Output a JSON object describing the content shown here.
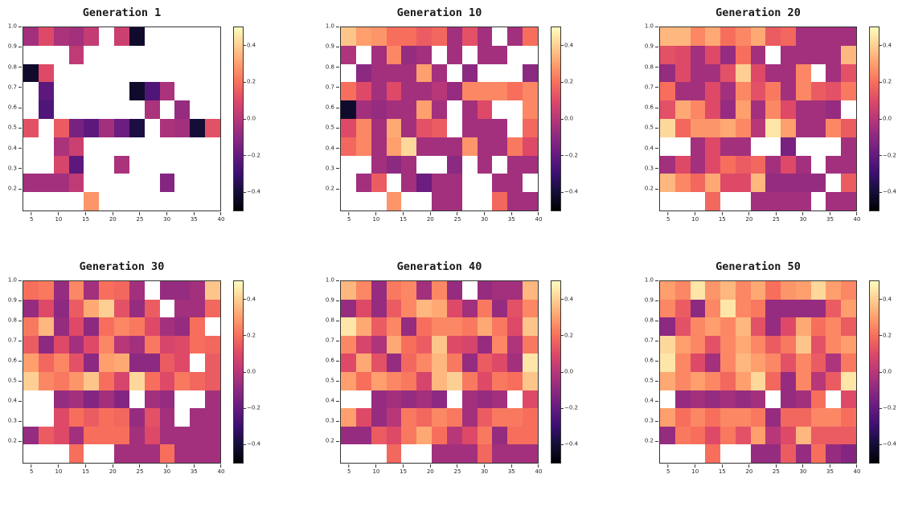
{
  "figure": {
    "background_color": "#ffffff",
    "colormap": "magma",
    "grid_rows": 10,
    "grid_cols": 13
  },
  "colorbar": {
    "vmin": -0.5,
    "vmax": 0.5,
    "tick_labels": [
      "0.4",
      "0.2",
      "0.0",
      "−0.2",
      "−0.4"
    ],
    "tick_values": [
      0.4,
      0.2,
      0.0,
      -0.2,
      -0.4
    ]
  },
  "axes_common": {
    "x_tick_labels": [
      "5",
      "10",
      "15",
      "20",
      "25",
      "30",
      "35",
      "40"
    ],
    "x_tick_values": [
      5,
      10,
      15,
      20,
      25,
      30,
      35,
      40
    ],
    "y_tick_labels": [
      "1.0",
      "0.9",
      "0.8",
      "0.7",
      "0.6",
      "0.5",
      "0.4",
      "0.3",
      "0.2"
    ],
    "y_tick_values": [
      1.0,
      0.9,
      0.8,
      0.7,
      0.6,
      0.5,
      0.4,
      0.3,
      0.2
    ],
    "x_range": [
      3.33,
      40.0
    ],
    "y_range": [
      0.09,
      1.0
    ]
  },
  "chart_data": [
    {
      "type": "heatmap",
      "title": "Generation 1",
      "colormap": "magma",
      "vmin": -0.5,
      "vmax": 0.5,
      "x_range": [
        3.33,
        40.0
      ],
      "y_range": [
        0.09,
        1.0
      ],
      "values": [
        [
          -0.05,
          0.1,
          -0.03,
          -0.05,
          0.03,
          null,
          0.05,
          -0.42,
          null,
          null,
          null,
          null,
          null
        ],
        [
          null,
          null,
          null,
          0.02,
          null,
          null,
          null,
          null,
          null,
          null,
          null,
          null,
          null
        ],
        [
          -0.42,
          0.1,
          null,
          null,
          null,
          null,
          null,
          null,
          null,
          null,
          null,
          null,
          null
        ],
        [
          null,
          -0.22,
          null,
          null,
          null,
          null,
          null,
          -0.42,
          -0.25,
          -0.03,
          null,
          null,
          null
        ],
        [
          null,
          -0.25,
          null,
          null,
          null,
          null,
          null,
          null,
          -0.03,
          null,
          -0.08,
          null,
          null
        ],
        [
          0.12,
          null,
          0.15,
          -0.15,
          -0.22,
          -0.05,
          -0.18,
          -0.38,
          null,
          -0.03,
          -0.05,
          -0.4,
          0.12
        ],
        [
          null,
          null,
          -0.03,
          0.05,
          null,
          null,
          null,
          null,
          null,
          null,
          null,
          null,
          null
        ],
        [
          null,
          null,
          0.08,
          -0.22,
          null,
          null,
          -0.03,
          null,
          null,
          null,
          null,
          null,
          null
        ],
        [
          -0.05,
          -0.05,
          -0.05,
          0.02,
          null,
          null,
          null,
          null,
          null,
          -0.12,
          null,
          null,
          null
        ],
        [
          null,
          null,
          null,
          null,
          0.28,
          null,
          null,
          null,
          null,
          null,
          null,
          null,
          null
        ]
      ]
    },
    {
      "type": "heatmap",
      "title": "Generation 10",
      "colormap": "magma",
      "vmin": -0.5,
      "vmax": 0.5,
      "x_range": [
        3.33,
        40.0
      ],
      "y_range": [
        0.09,
        1.0
      ],
      "values": [
        [
          0.38,
          0.3,
          0.28,
          0.2,
          0.2,
          0.15,
          0.18,
          -0.05,
          0.12,
          -0.05,
          null,
          -0.05,
          0.2
        ],
        [
          -0.02,
          null,
          -0.05,
          0.25,
          -0.08,
          -0.05,
          null,
          -0.05,
          null,
          -0.05,
          -0.05,
          null,
          null
        ],
        [
          null,
          -0.1,
          -0.05,
          -0.05,
          -0.05,
          0.3,
          -0.05,
          null,
          -0.1,
          null,
          null,
          null,
          -0.1
        ],
        [
          0.2,
          0.1,
          -0.05,
          0.1,
          -0.05,
          -0.05,
          0.0,
          -0.08,
          0.25,
          0.25,
          0.25,
          0.2,
          0.25
        ],
        [
          -0.42,
          -0.05,
          -0.08,
          -0.05,
          -0.05,
          0.3,
          -0.05,
          null,
          -0.05,
          0.1,
          null,
          null,
          0.25
        ],
        [
          0.1,
          0.25,
          -0.05,
          0.32,
          -0.05,
          0.12,
          0.15,
          null,
          -0.05,
          -0.05,
          -0.05,
          null,
          0.18
        ],
        [
          0.18,
          0.25,
          -0.05,
          0.3,
          0.42,
          -0.05,
          -0.05,
          -0.05,
          0.28,
          -0.05,
          -0.05,
          0.22,
          0.1
        ],
        [
          null,
          null,
          -0.05,
          -0.1,
          -0.05,
          null,
          null,
          -0.1,
          null,
          -0.05,
          null,
          -0.05,
          -0.05
        ],
        [
          null,
          -0.05,
          0.15,
          null,
          -0.05,
          -0.18,
          -0.05,
          -0.05,
          null,
          null,
          -0.05,
          -0.05,
          null
        ],
        [
          null,
          null,
          null,
          0.28,
          null,
          null,
          -0.05,
          -0.05,
          null,
          null,
          0.18,
          -0.05,
          -0.05
        ]
      ]
    },
    {
      "type": "heatmap",
      "title": "Generation 20",
      "colormap": "magma",
      "vmin": -0.5,
      "vmax": 0.5,
      "x_range": [
        3.33,
        40.0
      ],
      "y_range": [
        0.09,
        1.0
      ],
      "values": [
        [
          0.35,
          0.35,
          0.25,
          0.32,
          0.2,
          0.25,
          0.32,
          0.15,
          0.18,
          -0.05,
          -0.05,
          -0.05,
          -0.05
        ],
        [
          0.12,
          0.1,
          -0.05,
          0.1,
          -0.08,
          0.2,
          -0.05,
          null,
          -0.05,
          -0.05,
          -0.05,
          -0.05,
          0.35
        ],
        [
          -0.08,
          0.1,
          -0.05,
          -0.05,
          0.12,
          0.4,
          0.1,
          -0.05,
          -0.05,
          0.25,
          null,
          -0.05,
          0.12
        ],
        [
          0.2,
          -0.05,
          -0.05,
          0.1,
          -0.05,
          0.25,
          0.12,
          0.22,
          -0.05,
          0.25,
          0.15,
          0.12,
          0.22
        ],
        [
          0.12,
          0.32,
          0.25,
          0.1,
          -0.08,
          0.3,
          -0.05,
          0.25,
          0.1,
          -0.05,
          -0.05,
          -0.08,
          null
        ],
        [
          0.42,
          0.18,
          0.28,
          0.28,
          0.32,
          0.25,
          0.0,
          0.45,
          0.3,
          -0.05,
          -0.05,
          0.25,
          0.15
        ],
        [
          null,
          null,
          -0.05,
          0.1,
          -0.05,
          -0.05,
          null,
          null,
          -0.15,
          null,
          null,
          null,
          -0.05
        ],
        [
          -0.05,
          0.1,
          -0.05,
          0.1,
          0.2,
          0.15,
          0.18,
          -0.05,
          0.1,
          -0.05,
          null,
          -0.05,
          -0.05
        ],
        [
          0.35,
          0.25,
          0.18,
          0.32,
          0.1,
          0.1,
          0.35,
          -0.08,
          -0.08,
          -0.08,
          -0.08,
          null,
          0.15
        ],
        [
          null,
          null,
          null,
          0.18,
          null,
          null,
          -0.05,
          -0.05,
          -0.05,
          -0.05,
          null,
          -0.05,
          -0.05
        ]
      ]
    },
    {
      "type": "heatmap",
      "title": "Generation 30",
      "colormap": "magma",
      "vmin": -0.5,
      "vmax": 0.5,
      "x_range": [
        3.33,
        40.0
      ],
      "y_range": [
        0.09,
        1.0
      ],
      "values": [
        [
          0.2,
          0.22,
          -0.08,
          0.25,
          -0.05,
          0.2,
          0.18,
          -0.05,
          null,
          -0.08,
          -0.08,
          -0.05,
          0.38
        ],
        [
          -0.08,
          0.1,
          -0.1,
          0.15,
          0.32,
          0.4,
          0.12,
          -0.08,
          0.15,
          null,
          -0.05,
          -0.05,
          0.18
        ],
        [
          0.22,
          0.35,
          -0.08,
          0.1,
          -0.1,
          0.2,
          0.25,
          0.22,
          0.1,
          -0.05,
          -0.08,
          0.2,
          null
        ],
        [
          0.15,
          -0.1,
          0.1,
          -0.05,
          0.1,
          0.25,
          0.0,
          -0.05,
          0.22,
          0.08,
          0.1,
          0.2,
          0.18
        ],
        [
          0.3,
          0.18,
          0.25,
          0.12,
          -0.1,
          0.3,
          0.32,
          -0.1,
          -0.1,
          0.15,
          0.1,
          null,
          0.15
        ],
        [
          0.4,
          0.25,
          0.22,
          0.28,
          0.38,
          0.2,
          0.08,
          0.42,
          0.2,
          0.1,
          0.22,
          0.18,
          0.15
        ],
        [
          null,
          null,
          -0.08,
          -0.05,
          -0.12,
          -0.05,
          -0.12,
          null,
          -0.05,
          -0.08,
          null,
          null,
          -0.05
        ],
        [
          null,
          null,
          0.1,
          0.2,
          0.15,
          0.2,
          0.18,
          -0.08,
          0.12,
          -0.05,
          null,
          -0.05,
          -0.05
        ],
        [
          -0.08,
          0.15,
          0.1,
          -0.05,
          0.2,
          0.2,
          0.2,
          -0.05,
          0.1,
          -0.05,
          -0.05,
          -0.05,
          -0.05
        ],
        [
          null,
          null,
          null,
          0.2,
          null,
          null,
          -0.05,
          -0.05,
          -0.05,
          0.2,
          -0.05,
          -0.05,
          -0.05
        ]
      ]
    },
    {
      "type": "heatmap",
      "title": "Generation 40",
      "colormap": "magma",
      "vmin": -0.5,
      "vmax": 0.5,
      "x_range": [
        3.33,
        40.0
      ],
      "y_range": [
        0.09,
        1.0
      ],
      "values": [
        [
          0.35,
          0.25,
          -0.08,
          0.22,
          0.25,
          -0.05,
          0.25,
          -0.08,
          null,
          -0.08,
          -0.05,
          -0.05,
          0.35
        ],
        [
          -0.08,
          0.1,
          -0.08,
          0.15,
          0.25,
          0.35,
          0.32,
          0.1,
          -0.05,
          0.22,
          -0.08,
          0.12,
          0.25
        ],
        [
          0.45,
          0.32,
          0.15,
          0.25,
          -0.08,
          0.2,
          0.25,
          0.25,
          0.22,
          0.32,
          0.22,
          0.1,
          0.38
        ],
        [
          0.25,
          0.08,
          -0.02,
          0.32,
          0.2,
          0.15,
          0.38,
          0.1,
          0.08,
          -0.08,
          0.25,
          -0.02,
          0.22
        ],
        [
          0.1,
          0.32,
          0.12,
          -0.08,
          0.18,
          0.25,
          0.35,
          0.22,
          -0.08,
          0.15,
          0.1,
          -0.05,
          0.45
        ],
        [
          0.3,
          0.2,
          0.3,
          0.25,
          0.22,
          0.08,
          0.35,
          0.4,
          0.22,
          0.1,
          0.22,
          0.2,
          0.38
        ],
        [
          null,
          null,
          -0.08,
          -0.05,
          -0.08,
          -0.05,
          -0.1,
          null,
          -0.05,
          -0.08,
          -0.05,
          null,
          0.1
        ],
        [
          0.3,
          0.1,
          -0.08,
          0.0,
          0.22,
          0.18,
          0.25,
          0.22,
          -0.05,
          0.15,
          0.22,
          0.22,
          0.2
        ],
        [
          -0.08,
          -0.08,
          0.15,
          0.1,
          0.22,
          0.32,
          0.2,
          0.0,
          0.1,
          0.22,
          -0.08,
          0.2,
          0.2
        ],
        [
          null,
          null,
          null,
          0.18,
          null,
          null,
          -0.05,
          -0.05,
          -0.05,
          0.18,
          -0.05,
          -0.05,
          -0.05
        ]
      ]
    },
    {
      "type": "heatmap",
      "title": "Generation 50",
      "colormap": "magma",
      "vmin": -0.5,
      "vmax": 0.5,
      "x_range": [
        3.33,
        40.0
      ],
      "y_range": [
        0.09,
        1.0
      ],
      "values": [
        [
          0.3,
          0.25,
          0.45,
          0.28,
          0.35,
          0.25,
          0.32,
          0.2,
          0.28,
          0.3,
          0.42,
          0.3,
          0.25
        ],
        [
          0.25,
          0.15,
          -0.1,
          0.25,
          0.45,
          0.25,
          0.22,
          -0.08,
          -0.08,
          -0.08,
          -0.08,
          0.15,
          0.3
        ],
        [
          -0.1,
          0.12,
          0.25,
          0.3,
          0.25,
          0.35,
          0.12,
          -0.08,
          0.1,
          0.32,
          0.2,
          0.25,
          0.15
        ],
        [
          0.42,
          0.3,
          0.25,
          0.12,
          0.25,
          0.32,
          0.25,
          0.15,
          0.22,
          0.38,
          0.12,
          0.25,
          0.3
        ],
        [
          0.45,
          0.25,
          0.1,
          -0.05,
          0.25,
          0.35,
          0.3,
          0.25,
          0.12,
          0.25,
          0.15,
          -0.02,
          0.22
        ],
        [
          0.32,
          0.25,
          0.3,
          0.25,
          0.18,
          0.3,
          0.42,
          0.18,
          -0.08,
          0.25,
          0.0,
          0.15,
          0.45
        ],
        [
          null,
          -0.08,
          -0.05,
          -0.08,
          -0.05,
          -0.08,
          -0.05,
          null,
          -0.08,
          -0.05,
          0.2,
          null,
          0.1
        ],
        [
          0.3,
          0.2,
          0.25,
          0.2,
          0.25,
          0.25,
          0.22,
          -0.08,
          0.18,
          0.18,
          0.25,
          0.25,
          0.2
        ],
        [
          -0.08,
          0.22,
          0.2,
          0.1,
          0.22,
          0.12,
          0.3,
          0.0,
          0.1,
          0.35,
          0.15,
          0.15,
          0.15
        ],
        [
          null,
          null,
          null,
          0.2,
          null,
          null,
          -0.08,
          -0.08,
          0.15,
          -0.08,
          0.2,
          -0.08,
          -0.12
        ]
      ]
    }
  ]
}
